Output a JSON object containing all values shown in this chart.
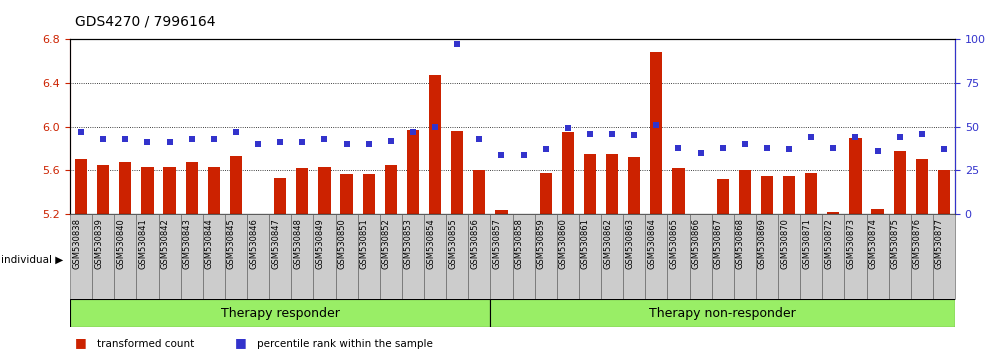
{
  "title": "GDS4270 / 7996164",
  "samples": [
    "GSM530838",
    "GSM530839",
    "GSM530840",
    "GSM530841",
    "GSM530842",
    "GSM530843",
    "GSM530844",
    "GSM530845",
    "GSM530846",
    "GSM530847",
    "GSM530848",
    "GSM530849",
    "GSM530850",
    "GSM530851",
    "GSM530852",
    "GSM530853",
    "GSM530854",
    "GSM530855",
    "GSM530856",
    "GSM530857",
    "GSM530858",
    "GSM530859",
    "GSM530860",
    "GSM530861",
    "GSM530862",
    "GSM530863",
    "GSM530864",
    "GSM530865",
    "GSM530866",
    "GSM530867",
    "GSM530868",
    "GSM530869",
    "GSM530870",
    "GSM530871",
    "GSM530872",
    "GSM530873",
    "GSM530874",
    "GSM530875",
    "GSM530876",
    "GSM530877"
  ],
  "bar_values": [
    5.7,
    5.65,
    5.68,
    5.63,
    5.63,
    5.68,
    5.63,
    5.73,
    5.2,
    5.53,
    5.62,
    5.63,
    5.57,
    5.57,
    5.65,
    5.97,
    6.47,
    5.96,
    5.6,
    5.24,
    5.15,
    5.58,
    5.95,
    5.75,
    5.75,
    5.72,
    6.68,
    5.62,
    5.18,
    5.52,
    5.6,
    5.55,
    5.55,
    5.58,
    5.22,
    5.9,
    5.25,
    5.78,
    5.7,
    5.6
  ],
  "percentile_values": [
    47,
    43,
    43,
    41,
    41,
    43,
    43,
    47,
    40,
    41,
    41,
    43,
    40,
    40,
    42,
    47,
    50,
    97,
    43,
    34,
    34,
    37,
    49,
    46,
    46,
    45,
    51,
    38,
    35,
    38,
    40,
    38,
    37,
    44,
    38,
    44,
    36,
    44,
    46,
    37
  ],
  "group1_count": 19,
  "group_labels": [
    "Therapy responder",
    "Therapy non-responder"
  ],
  "ylim_left": [
    5.2,
    6.8
  ],
  "ylim_right": [
    0,
    100
  ],
  "yticks_left": [
    5.2,
    5.6,
    6.0,
    6.4,
    6.8
  ],
  "yticks_right": [
    0,
    25,
    50,
    75,
    100
  ],
  "bar_color": "#CC2200",
  "dot_color": "#3333CC",
  "bg_color_plot": "#FFFFFF",
  "bg_color_label": "#CCCCCC",
  "group_bg_color": "#99EE66",
  "title_color": "#000000",
  "title_fontsize": 10,
  "tick_label_fontsize": 6.0,
  "left_tick_color": "#CC2200",
  "right_tick_color": "#3333CC",
  "legend_items": [
    {
      "color": "#CC2200",
      "label": "transformed count"
    },
    {
      "color": "#3333CC",
      "label": "percentile rank within the sample"
    }
  ]
}
